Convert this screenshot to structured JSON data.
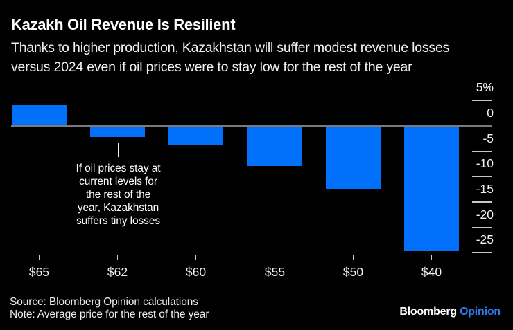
{
  "header": {
    "title": "Kazakh Oil Revenue Is Resilient",
    "subtitle": "Thanks to higher production, Kazakhstan will suffer modest revenue losses\nversus 2024 even if oil prices were to stay low for the rest of the year"
  },
  "chart_data": {
    "type": "bar",
    "title": "Kazakh Oil Revenue Is Resilient",
    "categories": [
      "$65",
      "$62",
      "$60",
      "$55",
      "$50",
      "$40"
    ],
    "values": [
      3.9,
      -2.3,
      -3.7,
      -8,
      -12.5,
      -24.8
    ],
    "unit": "percent",
    "xlabel": "",
    "ylabel": "",
    "ylim": [
      -27,
      5
    ],
    "y_ticks": [
      {
        "label": "5%",
        "value": 5
      },
      {
        "label": "0",
        "value": 0
      },
      {
        "label": "-5",
        "value": -5
      },
      {
        "label": "-10",
        "value": -10
      },
      {
        "label": "-15",
        "value": -15
      },
      {
        "label": "-20",
        "value": -20
      },
      {
        "label": "-25",
        "value": -25
      }
    ],
    "grid": "zero line across plot; short tick dashes at right axis only",
    "legend": "none",
    "bar_color": "#0171fc",
    "annotation_lines": [
      "If oil prices stay at",
      "current levels for",
      "the rest of the",
      "year, Kazakhstan",
      "suffers tiny losses"
    ],
    "annotation_target_category": "$62"
  },
  "footer": {
    "source": "Source: Bloomberg Opinion calculations",
    "note": "Note: Average price for the rest of the year",
    "brand": "Bloomberg",
    "brand_suffix": "Opinion"
  },
  "colors": {
    "background": "#000000",
    "bar": "#0171fc",
    "zero_line": "#7a7a7a",
    "tick": "#c9c9c9",
    "text": "#f2f2f2",
    "brand_blue": "#2d7bef"
  }
}
